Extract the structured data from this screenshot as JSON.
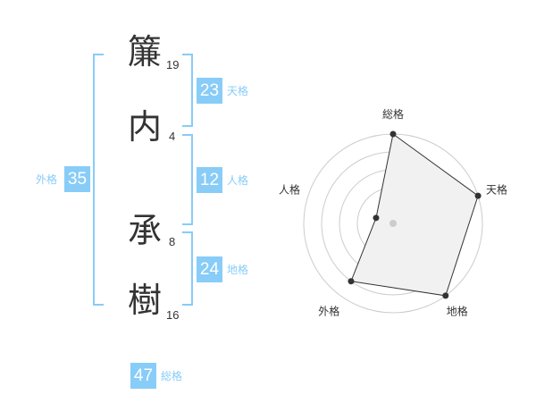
{
  "name": {
    "chars": [
      {
        "char": "簾",
        "strokes": "19"
      },
      {
        "char": "内",
        "strokes": "4"
      },
      {
        "char": "承",
        "strokes": "8"
      },
      {
        "char": "樹",
        "strokes": "16"
      }
    ]
  },
  "kaku": {
    "tenkaku": {
      "label": "天格",
      "value": "23"
    },
    "jinkaku": {
      "label": "人格",
      "value": "12"
    },
    "chikaku": {
      "label": "地格",
      "value": "24"
    },
    "gaikaku": {
      "label": "外格",
      "value": "35"
    },
    "soukaku": {
      "label": "総格",
      "value": "47"
    }
  },
  "accent_color": "#88ccf8",
  "chart_data": {
    "type": "radar",
    "axes": [
      "総格",
      "天格",
      "地格",
      "外格",
      "人格"
    ],
    "values": [
      5,
      5,
      5,
      4,
      1
    ],
    "range": [
      0,
      5
    ],
    "rings": 5
  }
}
